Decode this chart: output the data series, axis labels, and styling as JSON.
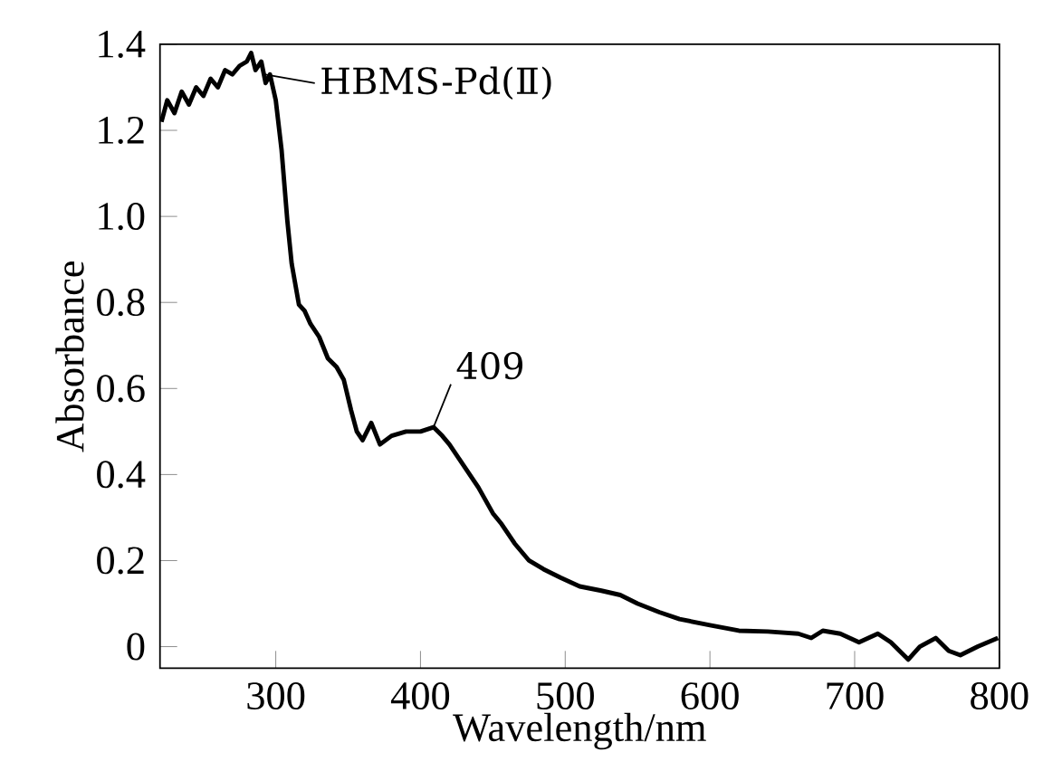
{
  "chart_data": {
    "type": "line",
    "xlabel": "Wavelength/nm",
    "ylabel": "Absorbance",
    "xlim": [
      220,
      800
    ],
    "ylim": [
      -0.05,
      1.4
    ],
    "xticks": [
      300,
      400,
      500,
      600,
      700,
      800
    ],
    "yticks": [
      {
        "value": 0,
        "label": "0"
      },
      0.2,
      0.4,
      0.6,
      0.8,
      {
        "value": 1,
        "label": "1.0"
      },
      1.2,
      1.4
    ],
    "x": [
      221,
      225,
      230,
      235,
      240,
      245,
      250,
      255,
      260,
      265,
      270,
      275,
      280,
      283,
      286,
      290,
      293,
      296,
      300,
      304,
      308,
      311,
      316,
      320,
      324,
      330,
      336,
      342,
      347,
      352,
      356,
      360,
      366,
      372,
      380,
      390,
      400,
      409,
      415,
      420,
      430,
      440,
      450,
      456,
      465,
      475,
      485,
      497,
      510,
      525,
      538,
      550,
      565,
      579,
      600,
      620,
      640,
      661,
      670,
      678,
      690,
      703,
      716,
      725,
      737,
      745,
      756,
      765,
      773,
      785,
      799
    ],
    "series": [
      {
        "color": "#000000",
        "values": [
          1.22,
          1.27,
          1.24,
          1.29,
          1.26,
          1.3,
          1.28,
          1.32,
          1.3,
          1.34,
          1.33,
          1.35,
          1.36,
          1.38,
          1.34,
          1.36,
          1.31,
          1.33,
          1.27,
          1.155,
          0.99,
          0.89,
          0.795,
          0.78,
          0.75,
          0.72,
          0.67,
          0.65,
          0.62,
          0.55,
          0.5,
          0.48,
          0.52,
          0.47,
          0.49,
          0.5,
          0.5,
          0.51,
          0.49,
          0.47,
          0.42,
          0.37,
          0.31,
          0.285,
          0.24,
          0.2,
          0.18,
          0.16,
          0.14,
          0.13,
          0.12,
          0.1,
          0.08,
          0.064,
          0.05,
          0.037,
          0.035,
          0.03,
          0.02,
          0.037,
          0.03,
          0.01,
          0.03,
          0.01,
          -0.03,
          0.0,
          0.02,
          -0.01,
          -0.02,
          0.0,
          0.02
        ]
      }
    ],
    "annotations": [
      {
        "text": "HBMS-Pd(Ⅱ)",
        "x": 292,
        "y": 1.33
      },
      {
        "text": "409",
        "x": 409,
        "y": 0.51
      }
    ]
  }
}
